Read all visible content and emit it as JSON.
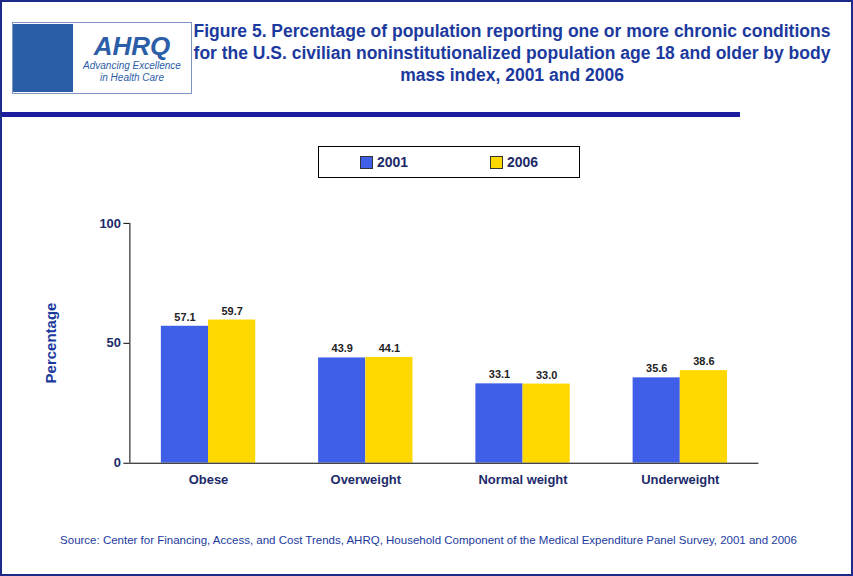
{
  "logo": {
    "name": "AHRQ",
    "tagline": "Advancing Excellence in Health Care"
  },
  "chart_data": {
    "type": "bar",
    "title": "Figure 5. Percentage of population reporting one or more chronic conditions for the U.S. civilian noninstitutionalized population age 18 and older by body mass index, 2001 and 2006",
    "categories": [
      "Obese",
      "Overweight",
      "Normal weight",
      "Underweight"
    ],
    "series": [
      {
        "name": "2001",
        "color": "#3f5fe8",
        "values": [
          57.1,
          43.9,
          33.1,
          35.6
        ],
        "value_labels": [
          "57.1",
          "43.9",
          "33.1",
          "35.6"
        ]
      },
      {
        "name": "2006",
        "color": "#ffd800",
        "values": [
          59.7,
          44.1,
          33.0,
          38.6
        ],
        "value_labels": [
          "59.7",
          "44.1",
          "33.0",
          "38.6"
        ]
      }
    ],
    "y_label": "Percentage",
    "ylim": [
      0,
      100
    ],
    "yticks": [
      0,
      50,
      100
    ],
    "grid": false,
    "legend": "top",
    "data_labels": true,
    "source": "Source: Center for Financing, Access, and Cost Trends, AHRQ, Household Component of the Medical Expenditure Panel Survey, 2001 and 2006"
  }
}
